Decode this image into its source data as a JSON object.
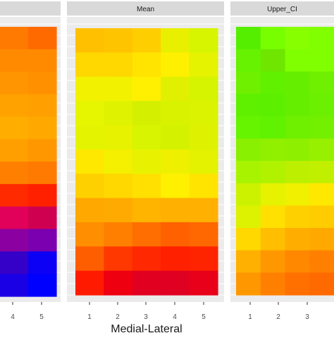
{
  "chart_data": {
    "type": "heatmap",
    "xlabel": "Medial-Lateral",
    "x_ticks": [
      "1",
      "2",
      "3",
      "4",
      "5"
    ],
    "panels": [
      {
        "title": "",
        "visible_x_ticks": [
          "4",
          "5"
        ],
        "rows": [
          [
            "#ff7a00",
            "#ff6a00"
          ],
          [
            "#ff8a00",
            "#ff8a00"
          ],
          [
            "#ff9500",
            "#ff9000"
          ],
          [
            "#ffa200",
            "#ffa000"
          ],
          [
            "#ffae00",
            "#ffa800"
          ],
          [
            "#ffa000",
            "#ff9800"
          ],
          [
            "#ff8000",
            "#ff7a00"
          ],
          [
            "#ff2a00",
            "#ff2000"
          ],
          [
            "#e1005a",
            "#d00050"
          ],
          [
            "#8a00a0",
            "#7a00b0"
          ],
          [
            "#3500c8",
            "#0c00f5"
          ],
          [
            "#1a00e5",
            "#0000ff"
          ]
        ]
      },
      {
        "title": "Mean",
        "visible_x_ticks": [
          "1",
          "2",
          "3",
          "4",
          "5"
        ],
        "rows": [
          [
            "#ffc000",
            "#ffc400",
            "#ffce00",
            "#e8f000",
            "#d8f500"
          ],
          [
            "#ffd800",
            "#ffd800",
            "#ffe400",
            "#ffef00",
            "#e5f200"
          ],
          [
            "#f2f200",
            "#f2f200",
            "#ffef00",
            "#e0f000",
            "#d6f400"
          ],
          [
            "#e6f500",
            "#dff300",
            "#d4f000",
            "#d8f200",
            "#dbf200"
          ],
          [
            "#e4f400",
            "#e6f200",
            "#d8f400",
            "#d4f200",
            "#def200"
          ],
          [
            "#ffe800",
            "#f4f000",
            "#e8f200",
            "#eef000",
            "#e4f200"
          ],
          [
            "#ffd000",
            "#ffd800",
            "#ffe000",
            "#ffef00",
            "#ffe400"
          ],
          [
            "#ffa800",
            "#ffaa00",
            "#ffb400",
            "#ffb000",
            "#ffb000"
          ],
          [
            "#ff8e00",
            "#ff8000",
            "#ff6e00",
            "#ff6000",
            "#ff6800"
          ],
          [
            "#ff5e00",
            "#ff3800",
            "#ff2800",
            "#ff2000",
            "#ff2400"
          ],
          [
            "#ff1a00",
            "#ee0010",
            "#e20020",
            "#e00022",
            "#e8001a"
          ]
        ]
      },
      {
        "title": "Upper_CI",
        "visible_x_ticks": [
          "1",
          "2",
          "3"
        ],
        "rows": [
          [
            "#55ee00",
            "#77ff00",
            "#88ff00",
            "#80ff00"
          ],
          [
            "#66f200",
            "#6ee600",
            "#80ff00",
            "#80ff00"
          ],
          [
            "#6ef000",
            "#60f000",
            "#66ee00",
            "#6ef000"
          ],
          [
            "#5ff000",
            "#5cf000",
            "#66ee00",
            "#6af000"
          ],
          [
            "#66f400",
            "#60f200",
            "#6ef000",
            "#72f000"
          ],
          [
            "#88f000",
            "#90f000",
            "#8ef000",
            "#96f000"
          ],
          [
            "#a8f400",
            "#b0f200",
            "#bcf000",
            "#c0f000"
          ],
          [
            "#ccf200",
            "#e6f200",
            "#f0f000",
            "#ffe800"
          ],
          [
            "#ddf200",
            "#ffe000",
            "#ffd000",
            "#ffcc00"
          ],
          [
            "#ffd800",
            "#ffbe00",
            "#ffae00",
            "#ffa800"
          ],
          [
            "#ffb000",
            "#ff9800",
            "#ff8800",
            "#ff8000"
          ],
          [
            "#ff9800",
            "#ff8000",
            "#ff7000",
            "#ff6a00"
          ]
        ]
      }
    ]
  }
}
